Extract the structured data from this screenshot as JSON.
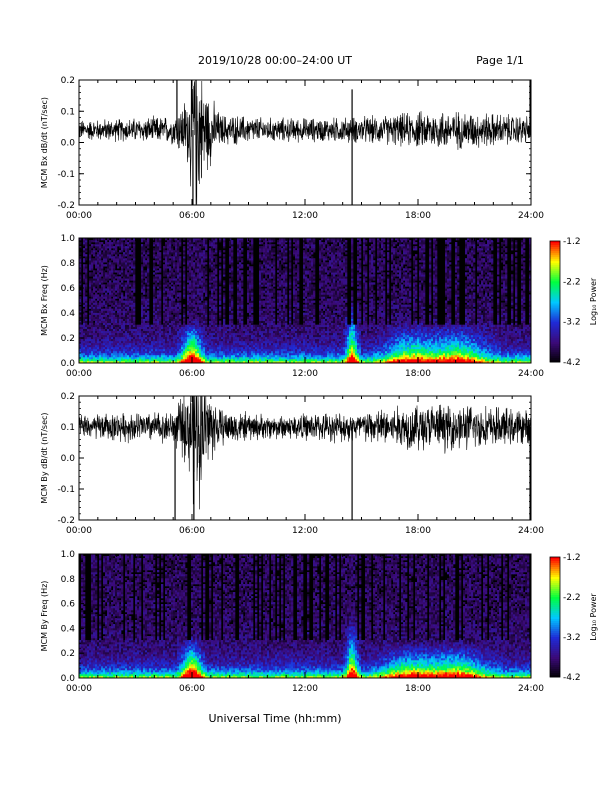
{
  "header": {
    "title": "2019/10/28  00:00–24:00 UT",
    "page": "Page 1/1"
  },
  "footer": {
    "xlabel": "Universal Time (hh:mm)"
  },
  "colorbar": {
    "label": "Log₁₀ Power",
    "ticks": [
      "-1.2",
      "-2.2",
      "-3.2",
      "-4.2"
    ],
    "range": [
      -4.2,
      -1.2
    ],
    "colors": [
      "#000000",
      "#3b0a78",
      "#1f2ad6",
      "#00c8ff",
      "#00ff40",
      "#ffff00",
      "#ff0000"
    ]
  },
  "chart_data": [
    {
      "type": "line",
      "ylabel": "MCM Bx dB/dt (nT/sec)",
      "xlabel": "",
      "xlim": [
        0,
        24
      ],
      "ylim": [
        -0.2,
        0.2
      ],
      "x_ticks": [
        "00:00",
        "06:00",
        "12:00",
        "18:00",
        "24:00"
      ],
      "y_ticks": [
        "0.2",
        "0.1",
        "0.0",
        "-0.1",
        "-0.2"
      ],
      "baseline": 0.04,
      "activity": [
        [
          0,
          0.025
        ],
        [
          3,
          0.03
        ],
        [
          5,
          0.035
        ],
        [
          5.8,
          0.09
        ],
        [
          6.1,
          0.25
        ],
        [
          6.6,
          0.12
        ],
        [
          7.5,
          0.04
        ],
        [
          10,
          0.03
        ],
        [
          13,
          0.03
        ],
        [
          16,
          0.035
        ],
        [
          19,
          0.05
        ],
        [
          21,
          0.045
        ],
        [
          24,
          0.035
        ]
      ],
      "spikes": [
        {
          "x": 5.2,
          "y": 0.2
        },
        {
          "x": 6.05,
          "y": -0.2
        },
        {
          "x": 14.5,
          "y": -0.2
        },
        {
          "x": 14.5,
          "y": 0.17
        },
        {
          "x": 23.95,
          "y": 0.2
        }
      ]
    },
    {
      "type": "heatmap",
      "ylabel": "MCM Bx Freq (Hz)",
      "xlabel": "",
      "xlim": [
        0,
        24
      ],
      "ylim": [
        0,
        1.0
      ],
      "x_ticks": [
        "00:00",
        "06:00",
        "12:00",
        "18:00",
        "24:00"
      ],
      "y_ticks": [
        "1.0",
        "0.8",
        "0.6",
        "0.4",
        "0.2",
        "0.0"
      ],
      "enhancements": [
        {
          "t": 6.0,
          "w": 0.5,
          "f": 0.35,
          "p": 0.9
        },
        {
          "t": 14.5,
          "w": 0.3,
          "f": 0.5,
          "p": 0.8
        },
        {
          "t": 17.5,
          "w": 1.2,
          "f": 0.35,
          "p": 0.55
        },
        {
          "t": 20.0,
          "w": 1.5,
          "f": 0.35,
          "p": 0.6
        }
      ]
    },
    {
      "type": "line",
      "ylabel": "MCM By dB/dt (nT/sec)",
      "xlabel": "",
      "xlim": [
        0,
        24
      ],
      "ylim": [
        -0.2,
        0.2
      ],
      "x_ticks": [
        "00:00",
        "06:00",
        "12:00",
        "18:00",
        "24:00"
      ],
      "y_ticks": [
        "0.2",
        "0.1",
        "0.0",
        "-0.1",
        "-0.2"
      ],
      "baseline": 0.1,
      "activity": [
        [
          0,
          0.03
        ],
        [
          2,
          0.035
        ],
        [
          5,
          0.04
        ],
        [
          5.8,
          0.1
        ],
        [
          6.1,
          0.25
        ],
        [
          6.7,
          0.12
        ],
        [
          7.5,
          0.045
        ],
        [
          10,
          0.03
        ],
        [
          13,
          0.035
        ],
        [
          15,
          0.04
        ],
        [
          18,
          0.06
        ],
        [
          21,
          0.055
        ],
        [
          24,
          0.04
        ]
      ],
      "spikes": [
        {
          "x": 5.1,
          "y": -0.2
        },
        {
          "x": 6.1,
          "y": -0.2
        },
        {
          "x": 14.5,
          "y": -0.2
        },
        {
          "x": 23.95,
          "y": -0.2
        }
      ]
    },
    {
      "type": "heatmap",
      "ylabel": "MCM By Freq (Hz)",
      "xlabel": "",
      "xlim": [
        0,
        24
      ],
      "ylim": [
        0,
        1.0
      ],
      "x_ticks": [
        "00:00",
        "06:00",
        "12:00",
        "18:00",
        "24:00"
      ],
      "y_ticks": [
        "1.0",
        "0.8",
        "0.6",
        "0.4",
        "0.2",
        "0.0"
      ],
      "enhancements": [
        {
          "t": 6.0,
          "w": 0.5,
          "f": 0.35,
          "p": 0.9
        },
        {
          "t": 14.5,
          "w": 0.3,
          "f": 0.5,
          "p": 0.8
        },
        {
          "t": 17.5,
          "w": 1.3,
          "f": 0.3,
          "p": 0.55
        },
        {
          "t": 20.0,
          "w": 1.5,
          "f": 0.3,
          "p": 0.6
        }
      ]
    }
  ]
}
